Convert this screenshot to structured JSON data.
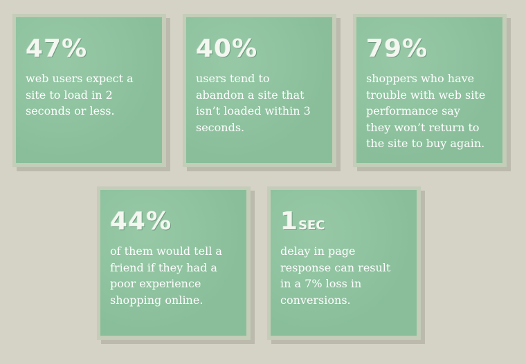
{
  "cards": [
    {
      "stat": "47%",
      "lines": [
        "web users expect a",
        "site to load in 2",
        "seconds or less."
      ]
    },
    {
      "stat": "40%",
      "lines": [
        "users tend to",
        "abandon a site that",
        "isn’t loaded within 3",
        "seconds."
      ]
    },
    {
      "stat": "79%",
      "lines": [
        "shoppers who have",
        "trouble with web site",
        "performance say",
        "they won’t return to",
        "the site to buy again."
      ]
    },
    {
      "stat": "44%",
      "lines": [
        "of them would tell a",
        "friend if they had a",
        "poor experience",
        "shopping online."
      ]
    },
    {
      "stat": "1",
      "unit": "SEC",
      "lines": [
        "delay in page",
        "response can result",
        "in a 7% loss in",
        "conversions."
      ]
    }
  ]
}
